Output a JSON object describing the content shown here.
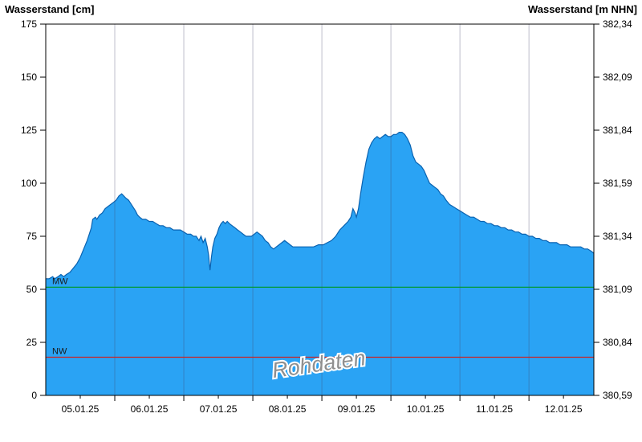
{
  "chart_data": {
    "type": "area",
    "title_left": "Wasserstand [cm]",
    "title_right": "Wasserstand [m NHN]",
    "watermark": "Rohdaten",
    "x_start_day": 5.0,
    "x_end_day": 12.94,
    "x_gridline_days": [
      6,
      7,
      8,
      9,
      10,
      11,
      12
    ],
    "x_label_days": [
      5.5,
      6.5,
      7.5,
      8.5,
      9.5,
      10.5,
      11.5,
      12.5
    ],
    "x_labels": [
      "05.01.25",
      "06.01.25",
      "07.01.25",
      "08.01.25",
      "09.01.25",
      "10.01.25",
      "11.01.25",
      "12.01.25"
    ],
    "y_left": {
      "min": 0,
      "max": 175,
      "ticks": [
        0,
        25,
        50,
        75,
        100,
        125,
        150,
        175
      ]
    },
    "y_right": {
      "ticks": [
        "380,59",
        "380,84",
        "381,09",
        "381,34",
        "381,59",
        "381,84",
        "382,09",
        "382,34"
      ]
    },
    "reference_lines": [
      {
        "label": "MW",
        "value_cm": 51,
        "color": "#009933"
      },
      {
        "label": "NW",
        "value_cm": 18,
        "color": "#cc2222"
      }
    ],
    "colors": {
      "area_fill": "#2aa3f4",
      "area_stroke": "#0a62b0",
      "gridline": "rgba(70,70,105,0.35)",
      "axis": "#000000",
      "watermark": "#8f8f8f"
    },
    "series": {
      "name": "Wasserstand",
      "points_day_cm": [
        [
          5.0,
          55
        ],
        [
          5.05,
          55
        ],
        [
          5.1,
          56
        ],
        [
          5.13,
          55
        ],
        [
          5.18,
          56
        ],
        [
          5.22,
          57
        ],
        [
          5.26,
          56
        ],
        [
          5.3,
          57
        ],
        [
          5.35,
          58
        ],
        [
          5.4,
          60
        ],
        [
          5.45,
          62
        ],
        [
          5.5,
          65
        ],
        [
          5.55,
          69
        ],
        [
          5.6,
          73
        ],
        [
          5.63,
          76
        ],
        [
          5.66,
          79
        ],
        [
          5.68,
          83
        ],
        [
          5.72,
          84
        ],
        [
          5.74,
          83
        ],
        [
          5.78,
          85
        ],
        [
          5.82,
          86
        ],
        [
          5.86,
          88
        ],
        [
          5.9,
          89
        ],
        [
          5.94,
          90
        ],
        [
          5.98,
          91
        ],
        [
          6.02,
          92
        ],
        [
          6.06,
          94
        ],
        [
          6.1,
          95
        ],
        [
          6.13,
          94
        ],
        [
          6.16,
          93
        ],
        [
          6.2,
          92
        ],
        [
          6.24,
          90
        ],
        [
          6.28,
          88
        ],
        [
          6.3,
          87
        ],
        [
          6.33,
          85
        ],
        [
          6.36,
          84
        ],
        [
          6.4,
          83
        ],
        [
          6.45,
          83
        ],
        [
          6.5,
          82
        ],
        [
          6.55,
          82
        ],
        [
          6.6,
          81
        ],
        [
          6.65,
          80
        ],
        [
          6.7,
          80
        ],
        [
          6.75,
          79
        ],
        [
          6.8,
          79
        ],
        [
          6.85,
          78
        ],
        [
          6.9,
          78
        ],
        [
          6.95,
          78
        ],
        [
          7.0,
          77
        ],
        [
          7.05,
          76
        ],
        [
          7.1,
          76
        ],
        [
          7.14,
          75
        ],
        [
          7.18,
          75
        ],
        [
          7.22,
          73
        ],
        [
          7.25,
          75
        ],
        [
          7.28,
          72
        ],
        [
          7.31,
          74
        ],
        [
          7.34,
          70
        ],
        [
          7.36,
          66
        ],
        [
          7.38,
          59
        ],
        [
          7.4,
          65
        ],
        [
          7.42,
          70
        ],
        [
          7.45,
          74
        ],
        [
          7.48,
          76
        ],
        [
          7.51,
          79
        ],
        [
          7.54,
          81
        ],
        [
          7.57,
          82
        ],
        [
          7.6,
          81
        ],
        [
          7.63,
          82
        ],
        [
          7.66,
          81
        ],
        [
          7.7,
          80
        ],
        [
          7.74,
          79
        ],
        [
          7.78,
          78
        ],
        [
          7.82,
          77
        ],
        [
          7.86,
          76
        ],
        [
          7.9,
          75
        ],
        [
          7.94,
          75
        ],
        [
          7.98,
          75
        ],
        [
          8.02,
          76
        ],
        [
          8.06,
          77
        ],
        [
          8.1,
          76
        ],
        [
          8.14,
          75
        ],
        [
          8.18,
          73
        ],
        [
          8.22,
          72
        ],
        [
          8.26,
          70
        ],
        [
          8.3,
          69
        ],
        [
          8.34,
          70
        ],
        [
          8.38,
          71
        ],
        [
          8.42,
          72
        ],
        [
          8.46,
          73
        ],
        [
          8.5,
          72
        ],
        [
          8.54,
          71
        ],
        [
          8.58,
          70
        ],
        [
          8.65,
          70
        ],
        [
          8.72,
          70
        ],
        [
          8.8,
          70
        ],
        [
          8.88,
          70
        ],
        [
          8.95,
          71
        ],
        [
          9.02,
          71
        ],
        [
          9.08,
          72
        ],
        [
          9.14,
          73
        ],
        [
          9.2,
          75
        ],
        [
          9.26,
          78
        ],
        [
          9.32,
          80
        ],
        [
          9.38,
          82
        ],
        [
          9.42,
          84
        ],
        [
          9.45,
          88
        ],
        [
          9.48,
          86
        ],
        [
          9.5,
          84
        ],
        [
          9.53,
          88
        ],
        [
          9.56,
          95
        ],
        [
          9.6,
          103
        ],
        [
          9.64,
          110
        ],
        [
          9.68,
          116
        ],
        [
          9.72,
          119
        ],
        [
          9.76,
          121
        ],
        [
          9.8,
          122
        ],
        [
          9.84,
          121
        ],
        [
          9.88,
          122
        ],
        [
          9.92,
          123
        ],
        [
          9.96,
          122
        ],
        [
          10.0,
          122
        ],
        [
          10.04,
          123
        ],
        [
          10.08,
          123
        ],
        [
          10.12,
          124
        ],
        [
          10.16,
          124
        ],
        [
          10.2,
          123
        ],
        [
          10.24,
          121
        ],
        [
          10.28,
          118
        ],
        [
          10.32,
          113
        ],
        [
          10.36,
          110
        ],
        [
          10.4,
          109
        ],
        [
          10.44,
          108
        ],
        [
          10.48,
          106
        ],
        [
          10.52,
          103
        ],
        [
          10.56,
          100
        ],
        [
          10.6,
          99
        ],
        [
          10.64,
          98
        ],
        [
          10.68,
          97
        ],
        [
          10.72,
          95
        ],
        [
          10.76,
          94
        ],
        [
          10.8,
          92
        ],
        [
          10.85,
          90
        ],
        [
          10.9,
          89
        ],
        [
          10.95,
          88
        ],
        [
          11.0,
          87
        ],
        [
          11.05,
          86
        ],
        [
          11.1,
          85
        ],
        [
          11.15,
          84
        ],
        [
          11.2,
          84
        ],
        [
          11.25,
          83
        ],
        [
          11.3,
          82
        ],
        [
          11.35,
          82
        ],
        [
          11.4,
          81
        ],
        [
          11.45,
          81
        ],
        [
          11.5,
          80
        ],
        [
          11.55,
          80
        ],
        [
          11.6,
          79
        ],
        [
          11.65,
          79
        ],
        [
          11.7,
          78
        ],
        [
          11.75,
          78
        ],
        [
          11.8,
          77
        ],
        [
          11.85,
          77
        ],
        [
          11.9,
          76
        ],
        [
          11.95,
          76
        ],
        [
          12.0,
          75
        ],
        [
          12.05,
          75
        ],
        [
          12.1,
          74
        ],
        [
          12.15,
          74
        ],
        [
          12.2,
          73
        ],
        [
          12.25,
          73
        ],
        [
          12.3,
          72
        ],
        [
          12.35,
          72
        ],
        [
          12.4,
          72
        ],
        [
          12.45,
          71
        ],
        [
          12.5,
          71
        ],
        [
          12.55,
          71
        ],
        [
          12.6,
          70
        ],
        [
          12.65,
          70
        ],
        [
          12.7,
          70
        ],
        [
          12.75,
          70
        ],
        [
          12.8,
          69
        ],
        [
          12.85,
          69
        ],
        [
          12.9,
          68
        ],
        [
          12.94,
          67
        ]
      ]
    }
  }
}
